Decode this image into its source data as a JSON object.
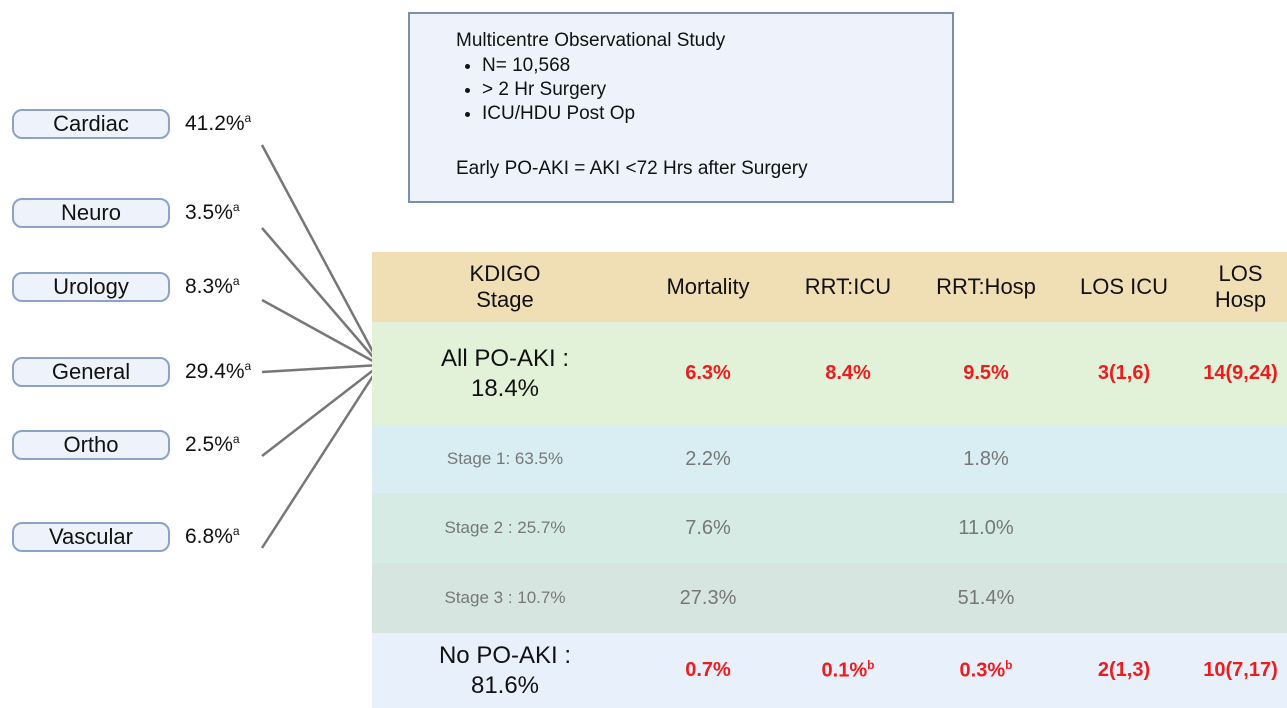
{
  "study_box": {
    "title": "Multicentre Observational Study",
    "bullets": [
      "N= 10,568",
      "> 2 Hr Surgery",
      "ICU/HDU Post Op"
    ],
    "definition": "Early PO-AKI = AKI <72 Hrs after Surgery"
  },
  "specialties": [
    {
      "label": "Cardiac",
      "value": "41.2%",
      "note": "a"
    },
    {
      "label": "Neuro",
      "value": "3.5%",
      "note": "a"
    },
    {
      "label": "Urology",
      "value": "8.3%",
      "note": "a"
    },
    {
      "label": "General",
      "value": "29.4%",
      "note": "a"
    },
    {
      "label": "Ortho",
      "value": "2.5%",
      "note": "a"
    },
    {
      "label": "Vascular",
      "value": "6.8%",
      "note": "a"
    }
  ],
  "table": {
    "headers": [
      "KDIGO Stage",
      "Mortality",
      "RRT:ICU",
      "RRT:Hosp",
      "LOS ICU",
      "LOS Hosp"
    ],
    "rows": [
      {
        "stage": "All PO-AKI : 18.4%",
        "cells": [
          {
            "text": "6.3%"
          },
          {
            "text": "8.4%"
          },
          {
            "text": "9.5%"
          },
          {
            "text": "3(1,6)"
          },
          {
            "text": "14(9,24)"
          }
        ]
      },
      {
        "stage": "Stage 1: 63.5%",
        "cells": [
          {
            "text": "2.2%"
          },
          null,
          {
            "text": "1.8%"
          },
          null,
          null
        ]
      },
      {
        "stage": "Stage 2 : 25.7%",
        "cells": [
          {
            "text": "7.6%"
          },
          null,
          {
            "text": "11.0%"
          },
          null,
          null
        ]
      },
      {
        "stage": "Stage 3 : 10.7%",
        "cells": [
          {
            "text": "27.3%"
          },
          null,
          {
            "text": "51.4%"
          },
          null,
          null
        ]
      },
      {
        "stage": "No PO-AKI : 81.6%",
        "cells": [
          {
            "text": "0.7%"
          },
          {
            "text": "0.1%",
            "note": "b"
          },
          {
            "text": "0.3%",
            "note": "b"
          },
          {
            "text": "2(1,3)"
          },
          {
            "text": "10(7,17)"
          }
        ]
      }
    ]
  }
}
